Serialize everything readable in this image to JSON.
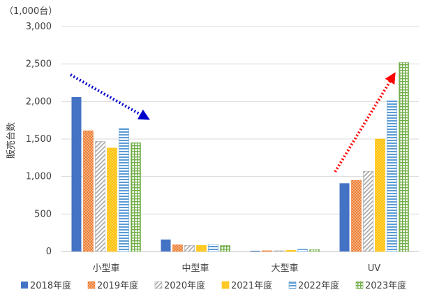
{
  "chart_data": {
    "type": "bar",
    "unit_label": "（1,000台）",
    "ylabel": "販売台数",
    "ylim": [
      0,
      3000
    ],
    "yticks": [
      0,
      500,
      1000,
      1500,
      2000,
      2500,
      3000
    ],
    "ytick_labels": [
      "0",
      "500",
      "1,000",
      "1,500",
      "2,000",
      "2,500",
      "3,000"
    ],
    "categories": [
      "小型車",
      "中型車",
      "大型車",
      "UV"
    ],
    "grid": true,
    "legend_position": "bottom",
    "series": [
      {
        "name": "2018年度",
        "color": "#4472c4",
        "pattern": "solid",
        "values": [
          2060,
          160,
          10,
          910
        ]
      },
      {
        "name": "2019年度",
        "color": "#ed7d31",
        "pattern": "dots",
        "values": [
          1610,
          90,
          10,
          950
        ]
      },
      {
        "name": "2020年度",
        "color": "#a5a5a5",
        "pattern": "diagonal",
        "values": [
          1470,
          80,
          10,
          1070
        ]
      },
      {
        "name": "2021年度",
        "color": "#ffc000",
        "pattern": "dots",
        "values": [
          1380,
          80,
          15,
          1500
        ]
      },
      {
        "name": "2022年度",
        "color": "#5b9bd5",
        "pattern": "horizontal",
        "values": [
          1640,
          90,
          30,
          2010
        ]
      },
      {
        "name": "2023年度",
        "color": "#70ad47",
        "pattern": "grid",
        "values": [
          1450,
          80,
          25,
          2520
        ]
      }
    ],
    "annotations": [
      {
        "type": "trend-arrow",
        "direction": "down",
        "color": "#0000cc",
        "category": "小型車"
      },
      {
        "type": "trend-arrow",
        "direction": "up",
        "color": "#ff0000",
        "category": "UV"
      }
    ]
  }
}
